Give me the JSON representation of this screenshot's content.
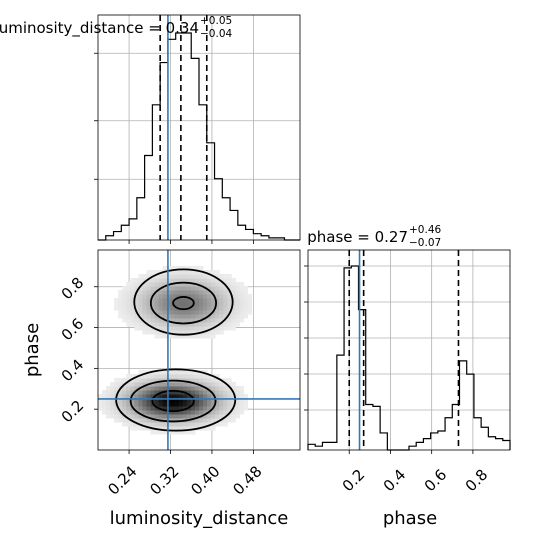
{
  "chart_data": [
    {
      "type": "histogram",
      "panel": "top-left",
      "title": {
        "param": "luminosity_distance",
        "value": "0.34",
        "plus": "+0.05",
        "minus": "−0.04"
      },
      "x_param": "luminosity_distance",
      "xlim": [
        0.18,
        0.57
      ],
      "bin_edges": [
        0.18,
        0.195,
        0.21,
        0.225,
        0.24,
        0.255,
        0.27,
        0.285,
        0.3,
        0.315,
        0.33,
        0.345,
        0.36,
        0.375,
        0.39,
        0.405,
        0.42,
        0.435,
        0.45,
        0.465,
        0.48,
        0.495,
        0.51,
        0.525,
        0.54,
        0.555,
        0.57
      ],
      "counts": [
        0,
        0.02,
        0.04,
        0.07,
        0.1,
        0.2,
        0.4,
        0.64,
        0.84,
        0.95,
        0.98,
        0.98,
        0.86,
        0.64,
        0.46,
        0.29,
        0.2,
        0.14,
        0.07,
        0.05,
        0.03,
        0.02,
        0.01,
        0.01,
        0,
        0
      ],
      "quantiles": [
        0.3,
        0.34,
        0.39
      ],
      "truth": 0.315,
      "grid": true
    },
    {
      "type": "histogram",
      "panel": "bottom-right",
      "title": {
        "param": "phase",
        "value": "0.27",
        "plus": "+0.46",
        "minus": "−0.07"
      },
      "x_param": "phase",
      "xlim": [
        0.0,
        0.98
      ],
      "x_ticks": [
        0.2,
        0.4,
        0.6,
        0.8
      ],
      "x_tick_labels": [
        "0.2",
        "0.4",
        "0.6",
        "0.8"
      ],
      "x_label": "phase",
      "bin_edges": [
        0.0,
        0.035,
        0.07,
        0.105,
        0.14,
        0.175,
        0.21,
        0.245,
        0.28,
        0.315,
        0.35,
        0.385,
        0.42,
        0.455,
        0.49,
        0.525,
        0.56,
        0.595,
        0.63,
        0.665,
        0.7,
        0.735,
        0.77,
        0.805,
        0.84,
        0.875,
        0.91,
        0.945,
        0.98
      ],
      "counts": [
        0.03,
        0.02,
        0.04,
        0.04,
        0.5,
        0.96,
        0.97,
        0.74,
        0.24,
        0.23,
        0.09,
        0.0,
        0.0,
        0.0,
        0.02,
        0.04,
        0.06,
        0.09,
        0.1,
        0.17,
        0.24,
        0.47,
        0.4,
        0.17,
        0.12,
        0.07,
        0.06,
        0.05
      ],
      "quantiles": [
        0.2,
        0.27,
        0.73
      ],
      "truth": 0.25,
      "grid": true
    },
    {
      "type": "contour",
      "panel": "bottom-left",
      "x_param": "luminosity_distance",
      "y_param": "phase",
      "xlim": [
        0.18,
        0.57
      ],
      "ylim": [
        0.0,
        0.98
      ],
      "x_ticks": [
        0.24,
        0.32,
        0.4,
        0.48
      ],
      "x_tick_labels": [
        "0.24",
        "0.32",
        "0.40",
        "0.48"
      ],
      "y_ticks": [
        0.2,
        0.4,
        0.6,
        0.8
      ],
      "y_tick_labels": [
        "0.2",
        "0.4",
        "0.6",
        "0.8"
      ],
      "x_label": "luminosity_distance",
      "y_label": "phase",
      "truth": {
        "x": 0.315,
        "y": 0.25
      },
      "clusters": [
        {
          "cx": 0.345,
          "cy": 0.72,
          "sx": 0.055,
          "sy": 0.075,
          "weight": 0.35
        },
        {
          "cx": 0.325,
          "cy": 0.24,
          "sx": 0.055,
          "sy": 0.06,
          "weight": 0.65
        }
      ],
      "contour_levels": [
        {
          "name": "outer",
          "clusters": [
            {
              "cx": 0.345,
              "cy": 0.725,
              "rx": 0.095,
              "ry": 0.16
            },
            {
              "cx": 0.33,
              "cy": 0.245,
              "rx": 0.115,
              "ry": 0.15
            }
          ]
        },
        {
          "name": "middle",
          "clusters": [
            {
              "cx": 0.345,
              "cy": 0.72,
              "rx": 0.063,
              "ry": 0.1
            },
            {
              "cx": 0.325,
              "cy": 0.24,
              "rx": 0.082,
              "ry": 0.1
            }
          ]
        },
        {
          "name": "inner",
          "clusters": [
            {
              "cx": 0.345,
              "cy": 0.72,
              "rx": 0.02,
              "ry": 0.03
            },
            {
              "cx": 0.325,
              "cy": 0.24,
              "rx": 0.04,
              "ry": 0.05
            }
          ]
        }
      ],
      "grid": true
    }
  ]
}
